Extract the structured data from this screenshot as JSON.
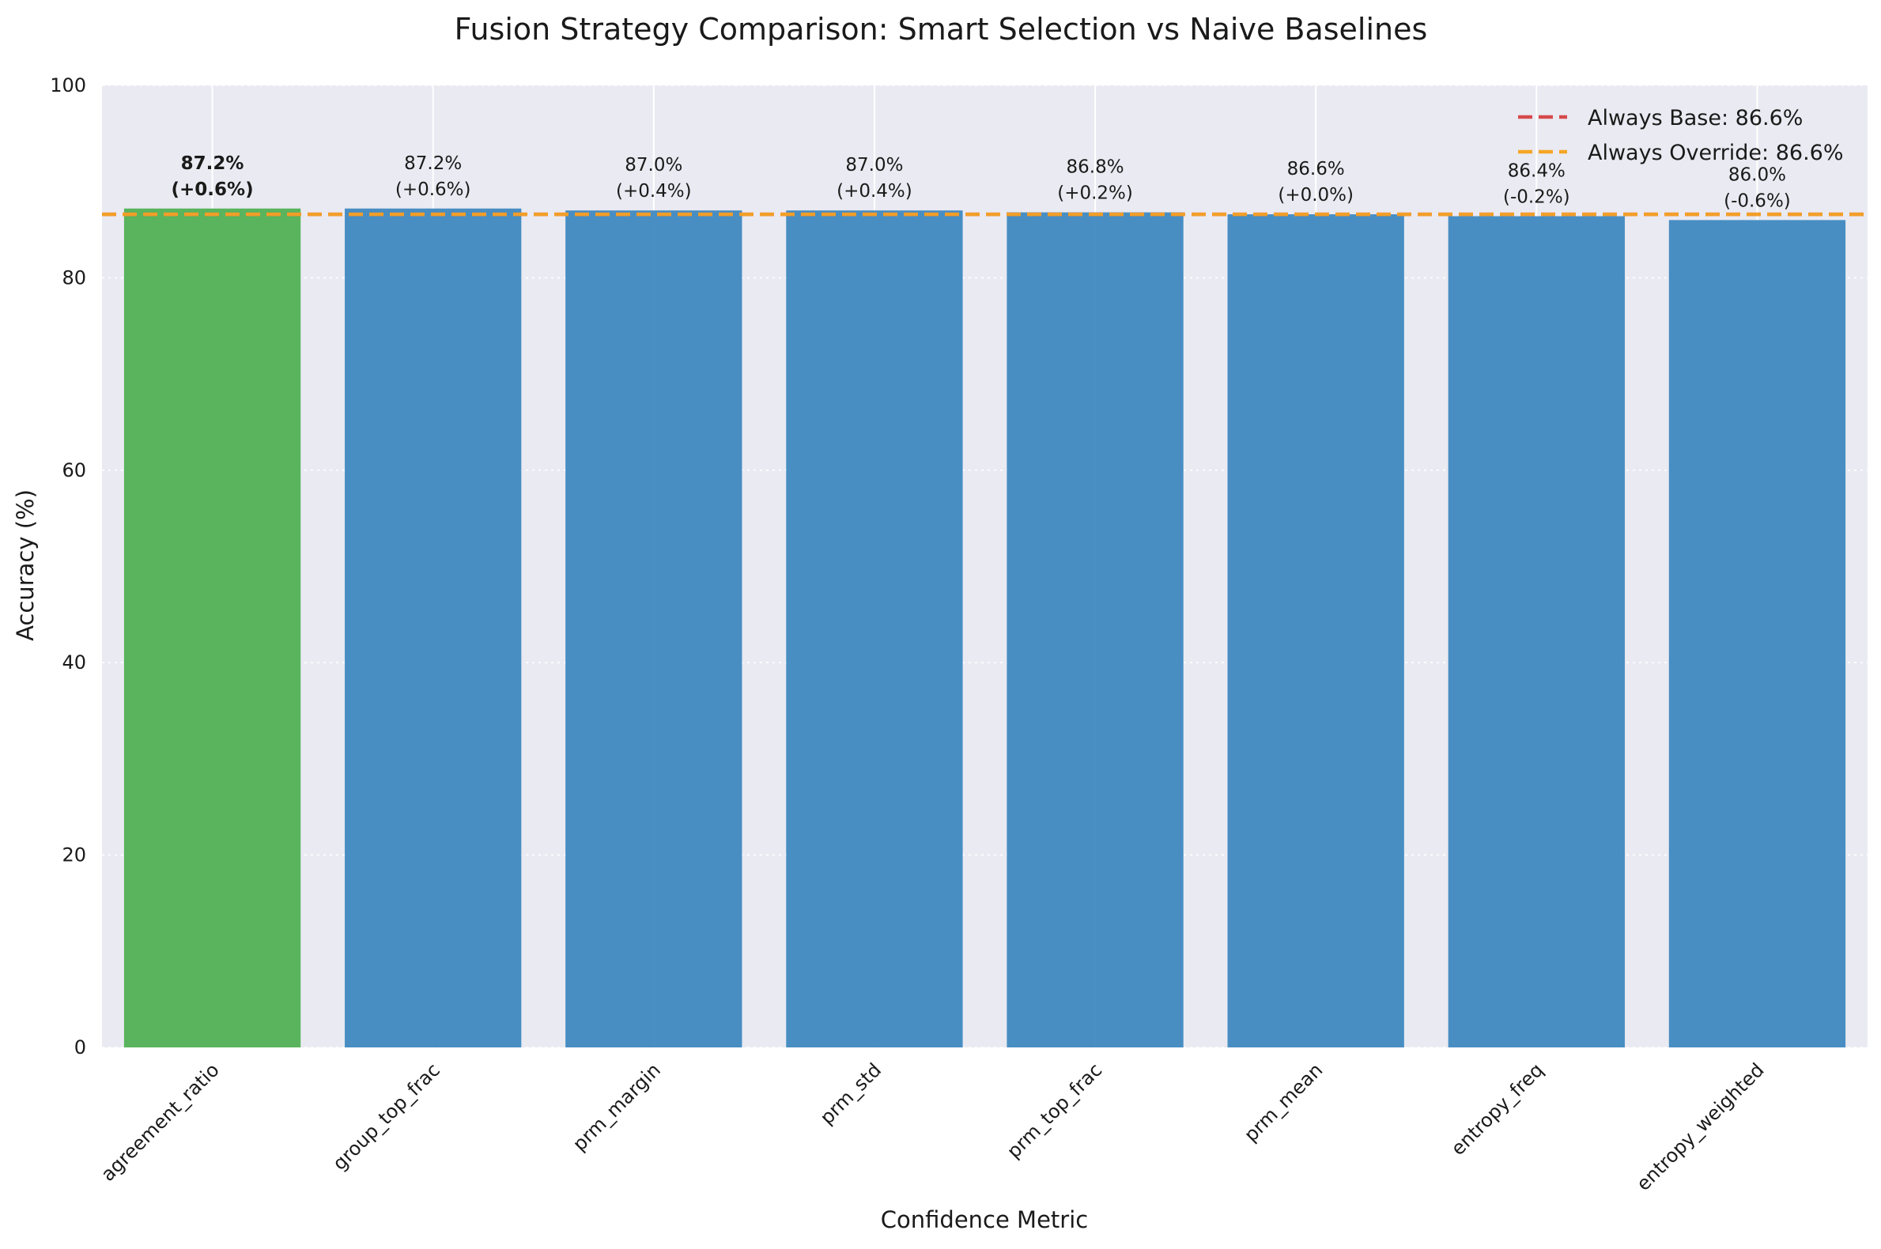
{
  "chart_data": {
    "type": "bar",
    "title": "Fusion Strategy Comparison: Smart Selection vs Naive Baselines",
    "xlabel": "Confidence Metric",
    "ylabel": "Accuracy (%)",
    "ylim": [
      0,
      100
    ],
    "yticks": [
      0,
      20,
      40,
      60,
      80,
      100
    ],
    "grid": true,
    "categories": [
      "agreement_ratio",
      "group_top_frac",
      "prm_margin",
      "prm_std",
      "prm_top_frac",
      "prm_mean",
      "entropy_freq",
      "entropy_weighted"
    ],
    "values": [
      87.2,
      87.2,
      87.0,
      87.0,
      86.8,
      86.6,
      86.4,
      86.0
    ],
    "value_labels": [
      "87.2%",
      "87.2%",
      "87.0%",
      "87.0%",
      "86.8%",
      "86.6%",
      "86.4%",
      "86.0%"
    ],
    "delta_labels": [
      "(+0.6%)",
      "(+0.6%)",
      "(+0.4%)",
      "(+0.4%)",
      "(+0.2%)",
      "(+0.0%)",
      "(-0.2%)",
      "(-0.6%)"
    ],
    "highlight_index": 0,
    "colors": {
      "highlight": "#4caf50",
      "bar": "#3a86bf",
      "plot_bg": "#eaeaf2",
      "grid": "#ffffff",
      "always_base": "#d64a4b",
      "always_override": "#f5a623"
    },
    "reference_lines": [
      {
        "label": "Always Base: 86.6%",
        "value": 86.6
      },
      {
        "label": "Always Override: 86.6%",
        "value": 86.6
      }
    ],
    "legend_position": "top-right"
  }
}
